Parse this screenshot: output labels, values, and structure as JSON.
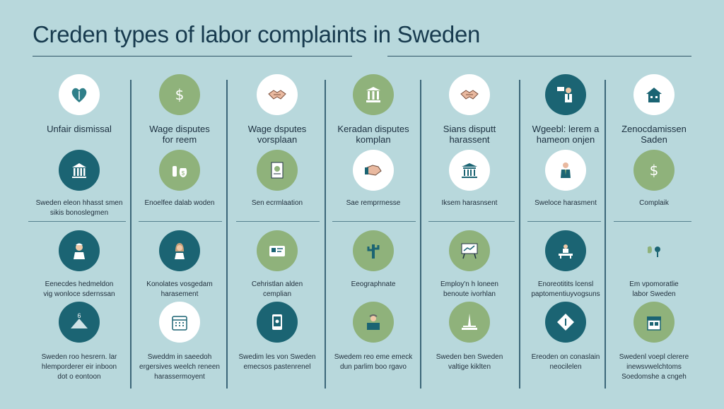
{
  "title": "Creden types of labor complaints in Sweden",
  "columns": [
    {
      "heading": "Unfair dismissal",
      "items": [
        {
          "icon": "heart-icon",
          "style": "white",
          "label": ""
        },
        {
          "icon": "building-icon",
          "style": "teal",
          "label": "Sweden eleon hhasst smen\nsikis bonoslegmen"
        },
        {
          "icon": "worker-icon",
          "style": "teal",
          "label": "Eenecdes hedmeldon\nvig wonloce sdernssan"
        },
        {
          "icon": "scale-icon",
          "style": "teal",
          "label": "Sweden roo hesrern. lar\nhlemporderer eir inboon\ndot o eontoon"
        }
      ]
    },
    {
      "heading": "Wage disputes\nfor reem",
      "items": [
        {
          "icon": "dollar-icon",
          "style": "green",
          "label": ""
        },
        {
          "icon": "money-bag-icon",
          "style": "green",
          "label": "Enoelfee dalab woden"
        },
        {
          "icon": "woman-icon",
          "style": "teal",
          "label": "Konolates vosgedam\nharasement"
        },
        {
          "icon": "calendar-icon",
          "style": "white",
          "label": "Sweddm in saeedoh\nergersives weelch reneen\nharassermoyent"
        }
      ]
    },
    {
      "heading": "Wage dsputes\nvorsplaan",
      "items": [
        {
          "icon": "handshake-icon",
          "style": "white",
          "label": ""
        },
        {
          "icon": "document-icon",
          "style": "green",
          "label": "Sen ecrmlaation"
        },
        {
          "icon": "id-card-icon",
          "style": "green",
          "label": "Cehristlan alden\ncemplian"
        },
        {
          "icon": "phone-icon",
          "style": "teal",
          "label": "Swedim les von Sweden\nemecsos pastenrenel"
        }
      ]
    },
    {
      "heading": "Keradan disputes\nkomplan",
      "items": [
        {
          "icon": "courthouse-icon",
          "style": "green",
          "label": ""
        },
        {
          "icon": "hand-icon",
          "style": "white",
          "label": "Sae remprrnesse"
        },
        {
          "icon": "cactus-icon",
          "style": "green",
          "label": "Eeographnate"
        },
        {
          "icon": "person-desk-icon",
          "style": "green",
          "label": "Swedem reo eme emeck\ndun parlim boo rgavo"
        }
      ]
    },
    {
      "heading": "Sians disputt\nharassent",
      "items": [
        {
          "icon": "handshake-icon",
          "style": "white",
          "label": ""
        },
        {
          "icon": "bank-icon",
          "style": "white",
          "label": "Iksem harasnsent"
        },
        {
          "icon": "chart-board-icon",
          "style": "green",
          "label": "Employ'n h loneen\nbenoute ivorhlan"
        },
        {
          "icon": "monument-icon",
          "style": "green",
          "label": "Sweden ben Sweden\nvaltige kiklten"
        }
      ]
    },
    {
      "heading": "Wgeebl: lerem a\nhameon onjen",
      "items": [
        {
          "icon": "presenter-icon",
          "style": "teal",
          "label": ""
        },
        {
          "icon": "businessman-icon",
          "style": "white",
          "label": "Sweloce harasment"
        },
        {
          "icon": "meeting-icon",
          "style": "teal",
          "label": "Enoreotitits lcensl\npaptomentiuyvogsuns"
        },
        {
          "icon": "diamond-sign-icon",
          "style": "teal",
          "label": "Ereoden on conaslain\nneocilelen"
        }
      ]
    },
    {
      "heading": "Zenocdamissen\nSaden",
      "items": [
        {
          "icon": "house-icon",
          "style": "white",
          "label": ""
        },
        {
          "icon": "dollar-icon",
          "style": "green",
          "label": "Complaik"
        },
        {
          "icon": "tools-icon",
          "style": "none",
          "label": "Em vpomoratlie\nlabor Sweden"
        },
        {
          "icon": "storefront-icon",
          "style": "green",
          "label": "Swedenl voepl clerere\ninewsvwelchtoms\nSoedomshe a cngeh"
        }
      ]
    }
  ]
}
